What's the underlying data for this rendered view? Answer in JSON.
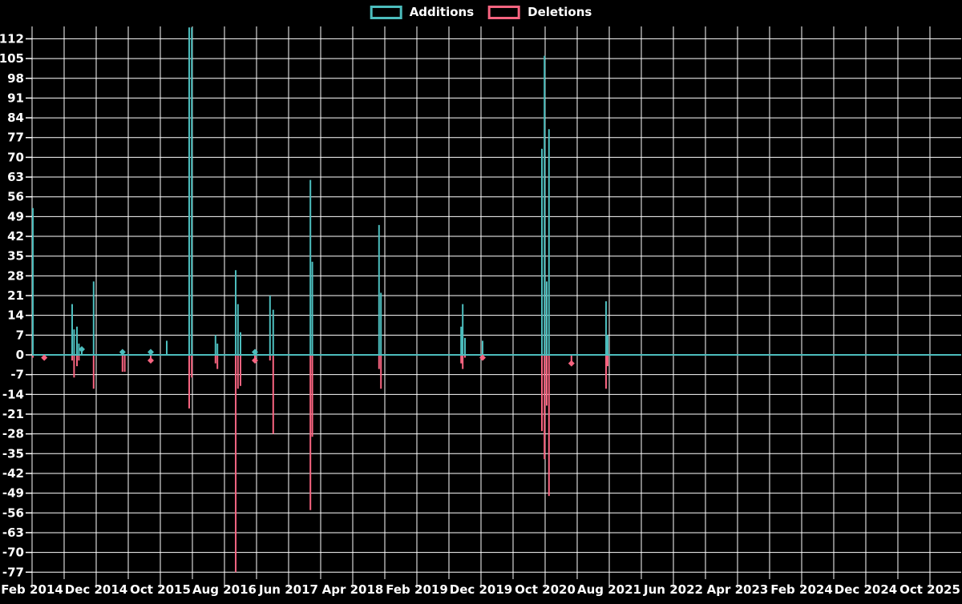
{
  "legend": {
    "items": [
      {
        "label": "Additions",
        "color": "#4cbdbd"
      },
      {
        "label": "Deletions",
        "color": "#f76480"
      }
    ]
  },
  "colors": {
    "background": "#000000",
    "grid": "#ffffff",
    "text": "#ffffff",
    "additions": "#4cbdbd",
    "deletions": "#f76480"
  },
  "chart_data": {
    "type": "line",
    "title": "",
    "xlabel": "",
    "ylabel": "",
    "description": "Weekly code additions (positive spikes) and deletions (negative spikes) over time; flat at 0 between release bursts",
    "x_axis": {
      "start_label": "Feb 2014",
      "end_label": "Oct 2025",
      "tick_labels": [
        "Feb 2014",
        "Dec 2014",
        "Oct 2015",
        "Aug 2016",
        "Jun 2017",
        "Apr 2018",
        "Feb 2019",
        "Dec 2019",
        "Oct 2020",
        "Aug 2021",
        "Jun 2022",
        "Apr 2023",
        "Feb 2024",
        "Dec 2024",
        "Oct 2025"
      ],
      "months_between_labels": 10,
      "months_between_gridlines": 5
    },
    "y_axis": {
      "min": -77,
      "max": 112,
      "step": 7,
      "tick_labels": [
        "112",
        "105",
        "98",
        "91",
        "84",
        "77",
        "70",
        "63",
        "56",
        "49",
        "42",
        "35",
        "28",
        "21",
        "14",
        "7",
        "0",
        "-7",
        "-14",
        "-21",
        "-28",
        "-35",
        "-42",
        "-49",
        "-56",
        "-63",
        "-70",
        "-77"
      ]
    },
    "series": [
      {
        "name": "Additions",
        "color": "#4cbdbd",
        "baseline": 0
      },
      {
        "name": "Deletions",
        "color": "#f76480",
        "baseline": 0
      }
    ],
    "spikes": [
      {
        "date": "Feb 2014",
        "m": 0.12,
        "additions": 52,
        "deletions": -1
      },
      {
        "date": "Apr 2014",
        "m": 1.9,
        "additions": 0,
        "deletions": -1,
        "marker": true
      },
      {
        "date": "Aug 2014",
        "m": 6.25,
        "additions": 18,
        "deletions": -2
      },
      {
        "date": "Aug 2014",
        "m": 6.55,
        "additions": 9,
        "deletions": -8
      },
      {
        "date": "Sep 2014",
        "m": 7.0,
        "additions": 10,
        "deletions": -4
      },
      {
        "date": "Sep 2014",
        "m": 7.3,
        "additions": 4,
        "deletions": -2
      },
      {
        "date": "Oct 2014",
        "m": 7.75,
        "additions": 2,
        "deletions": 0,
        "marker": true
      },
      {
        "date": "Nov 2014",
        "m": 9.6,
        "additions": 26,
        "deletions": -12
      },
      {
        "date": "Apr 2015",
        "m": 14.1,
        "additions": 1,
        "deletions": -6,
        "marker": true
      },
      {
        "date": "Apr 2015",
        "m": 14.45,
        "additions": 0,
        "deletions": -6
      },
      {
        "date": "Aug 2015",
        "m": 18.5,
        "additions": 1,
        "deletions": -2,
        "marker": true
      },
      {
        "date": "Nov 2015",
        "m": 21.0,
        "additions": 5,
        "deletions": 0
      },
      {
        "date": "Feb 2016",
        "m": 24.5,
        "additions": 116,
        "deletions": -19
      },
      {
        "date": "Mar 2016",
        "m": 24.9,
        "additions": 116,
        "deletions": -8
      },
      {
        "date": "Jun 2016",
        "m": 28.6,
        "additions": 7,
        "deletions": -3
      },
      {
        "date": "Jul 2016",
        "m": 28.9,
        "additions": 4,
        "deletions": -5
      },
      {
        "date": "Sep 2016",
        "m": 31.75,
        "additions": 30,
        "deletions": -77
      },
      {
        "date": "Oct 2016",
        "m": 32.1,
        "additions": 18,
        "deletions": -12
      },
      {
        "date": "Oct 2016",
        "m": 32.5,
        "additions": 8,
        "deletions": -11
      },
      {
        "date": "Dec 2016",
        "m": 34.75,
        "additions": 1,
        "deletions": -2,
        "marker": true
      },
      {
        "date": "Mar 2017",
        "m": 37.1,
        "additions": 21,
        "deletions": -2
      },
      {
        "date": "Apr 2017",
        "m": 37.6,
        "additions": 16,
        "deletions": -28
      },
      {
        "date": "Sep 2017",
        "m": 43.4,
        "additions": 62,
        "deletions": -55
      },
      {
        "date": "Oct 2017",
        "m": 43.7,
        "additions": 33,
        "deletions": -29
      },
      {
        "date": "Aug 2018",
        "m": 54.1,
        "additions": 46,
        "deletions": -5
      },
      {
        "date": "Aug 2018",
        "m": 54.4,
        "additions": 22,
        "deletions": -12
      },
      {
        "date": "Sep 2019",
        "m": 66.9,
        "additions": 10,
        "deletions": -3
      },
      {
        "date": "Sep 2019",
        "m": 67.15,
        "additions": 18,
        "deletions": -5
      },
      {
        "date": "Oct 2019",
        "m": 67.5,
        "additions": 6,
        "deletions": -1
      },
      {
        "date": "Dec 2019",
        "m": 70.25,
        "additions": 5,
        "deletions": -1,
        "marker": true
      },
      {
        "date": "Sep 2020",
        "m": 79.5,
        "additions": 73,
        "deletions": -27
      },
      {
        "date": "Oct 2020",
        "m": 79.9,
        "additions": 106,
        "deletions": -37
      },
      {
        "date": "Oct 2020",
        "m": 80.25,
        "additions": 26,
        "deletions": -18
      },
      {
        "date": "Nov 2020",
        "m": 80.6,
        "additions": 80,
        "deletions": -50
      },
      {
        "date": "Feb 2021",
        "m": 84.1,
        "additions": 0,
        "deletions": -3,
        "marker": true
      },
      {
        "date": "Aug 2021",
        "m": 89.5,
        "additions": 19,
        "deletions": -12
      },
      {
        "date": "Aug 2021",
        "m": 89.75,
        "additions": 7,
        "deletions": -4
      }
    ]
  }
}
